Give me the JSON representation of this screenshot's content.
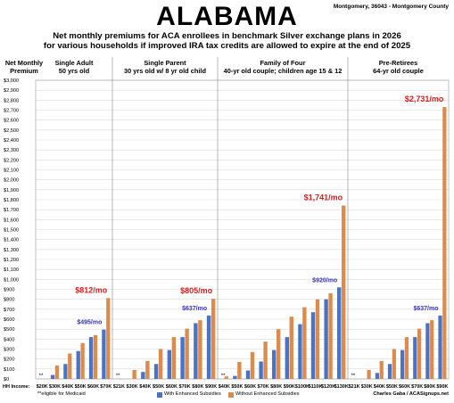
{
  "header": {
    "title": "ALABAMA",
    "location": "Montgomery, 36043 - Montgomery County",
    "subtitle_line1": "Net monthly premiums for ACA enrollees in benchmark Silver exchange plans in 2026",
    "subtitle_line2": "for various households if improved IRA tax credits are allowed to expire at the end of 2025"
  },
  "axis": {
    "ylabel_line1": "Net Monthly",
    "ylabel_line2": "Premium",
    "xlabel": "HH Income:"
  },
  "footer": {
    "note": "**eligible for Medicaid",
    "legend_with": "With Enhanced Subsidies",
    "legend_without": "Without Enhanced Subsidies",
    "credit": "Charles Gaba / ACASignups.net"
  },
  "colors": {
    "with": "#4b73c4",
    "without": "#dd8a4d",
    "with_label": "#3535b0",
    "without_label": "#d42020"
  },
  "chart_data": {
    "type": "bar",
    "ylim": [
      0,
      3000
    ],
    "yticks": [
      0,
      100,
      200,
      300,
      400,
      500,
      600,
      700,
      800,
      900,
      1000,
      1100,
      1200,
      1300,
      1400,
      1500,
      1600,
      1700,
      1800,
      1900,
      2000,
      2100,
      2200,
      2300,
      2400,
      2500,
      2600,
      2700,
      2800,
      2900,
      3000
    ],
    "ytick_labels": [
      "$0",
      "$100",
      "$200",
      "$300",
      "$400",
      "$500",
      "$600",
      "$700",
      "$800",
      "$900",
      "$1,000",
      "$1,100",
      "$1,200",
      "$1,300",
      "$1,400",
      "$1,500",
      "$1,600",
      "$1,700",
      "$1,800",
      "$1,900",
      "$2,000",
      "$2,100",
      "$2,200",
      "$2,300",
      "$2,400",
      "$2,500",
      "$2,600",
      "$2,700",
      "$2,800",
      "$2,900",
      "$3,000"
    ],
    "grid": true,
    "legend_placement": "bottom",
    "series_names": [
      "With Enhanced Subsidies",
      "Without Enhanced Subsidies"
    ],
    "panels": [
      {
        "title_line1": "Single Adult",
        "title_line2": "50 yrs old",
        "categories": [
          "$20K",
          "$30K",
          "$40K",
          "$50K",
          "$60K",
          "$70K"
        ],
        "medicaid": [
          true,
          false,
          false,
          false,
          false,
          false
        ],
        "with": [
          0,
          40,
          150,
          280,
          420,
          495
        ],
        "without": [
          0,
          135,
          255,
          360,
          440,
          812
        ],
        "with_label": "$495/mo",
        "without_label": "$812/mo"
      },
      {
        "title_line1": "Single Parent",
        "title_line2": "30 yrs old w/ 8 yr old child",
        "categories": [
          "$21K",
          "$30K",
          "$40K",
          "$50K",
          "$60K",
          "$70K",
          "$80K",
          "$90K"
        ],
        "medicaid": [
          true,
          false,
          false,
          false,
          false,
          false,
          false,
          false
        ],
        "with": [
          0,
          0,
          70,
          150,
          290,
          420,
          560,
          637
        ],
        "without": [
          0,
          90,
          180,
          300,
          420,
          505,
          590,
          805
        ],
        "with_label": "$637/mo",
        "without_label": "$805/mo"
      },
      {
        "title_line1": "Family of Four",
        "title_line2": "40-yr old couple; children age 15 & 12",
        "categories": [
          "$40K",
          "$50K",
          "$60K",
          "$70K",
          "$80K",
          "$90K",
          "$100K",
          "$110K",
          "$120K",
          "$130K"
        ],
        "medicaid": [
          true,
          false,
          false,
          false,
          false,
          false,
          false,
          false,
          false,
          false
        ],
        "with": [
          0,
          30,
          85,
          175,
          290,
          420,
          550,
          670,
          800,
          920
        ],
        "without": [
          25,
          170,
          270,
          375,
          500,
          625,
          720,
          800,
          860,
          1741
        ],
        "with_label": "$920/mo",
        "without_label": "$1,741/mo"
      },
      {
        "title_line1": "Pre-Retirees",
        "title_line2": "64-yr old couple",
        "categories": [
          "$21K",
          "$30K",
          "$40K",
          "$50K",
          "$60K",
          "$70K",
          "$80K",
          "$90K"
        ],
        "medicaid": [
          true,
          false,
          false,
          false,
          false,
          false,
          false,
          false
        ],
        "with": [
          0,
          0,
          60,
          150,
          290,
          420,
          560,
          637
        ],
        "without": [
          0,
          90,
          180,
          300,
          420,
          505,
          590,
          2731
        ],
        "with_label": "$637/mo",
        "without_label": "$2,731/mo"
      }
    ]
  }
}
